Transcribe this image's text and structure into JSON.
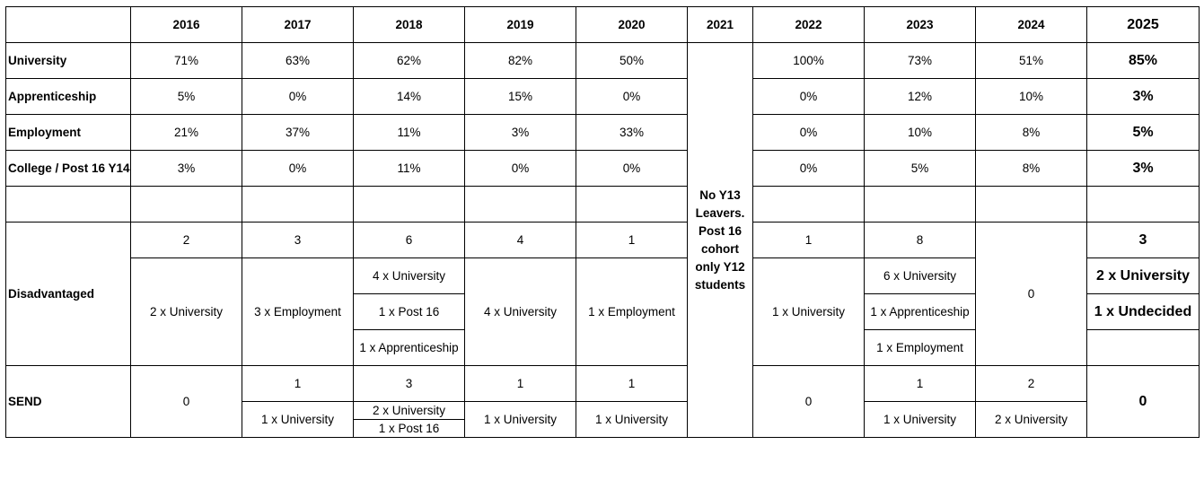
{
  "years": [
    "2016",
    "2017",
    "2018",
    "2019",
    "2020",
    "2021",
    "2022",
    "2023",
    "2024",
    "2025"
  ],
  "categories": {
    "university": "University",
    "apprenticeship": "Apprenticeship",
    "employment": "Employment",
    "college": "College / Post 16 Y14",
    "disadvantaged": "Disadvantaged",
    "send": "SEND"
  },
  "rates": {
    "university": [
      "71%",
      "63%",
      "62%",
      "82%",
      "50%",
      "100%",
      "73%",
      "51%",
      "85%"
    ],
    "apprenticeship": [
      "5%",
      "0%",
      "14%",
      "15%",
      "0%",
      "0%",
      "12%",
      "10%",
      "3%"
    ],
    "employment": [
      "21%",
      "37%",
      "11%",
      "3%",
      "33%",
      "0%",
      "10%",
      "8%",
      "5%"
    ],
    "college": [
      "3%",
      "0%",
      "11%",
      "0%",
      "0%",
      "0%",
      "5%",
      "8%",
      "3%"
    ]
  },
  "note_2021": "No Y13 Leavers. Post 16 cohort only Y12 students",
  "disadvantaged": {
    "y2016": {
      "count": "2",
      "d1": "2 x University"
    },
    "y2017": {
      "count": "3",
      "d1": "3 x Employment"
    },
    "y2018": {
      "count": "6",
      "d1": "4 x University",
      "d2": "1 x Post 16",
      "d3": "1 x Apprenticeship"
    },
    "y2019": {
      "count": "4",
      "d1": "4 x University"
    },
    "y2020": {
      "count": "1",
      "d1": "1 x Employment"
    },
    "y2022": {
      "count": "1",
      "d1": "1 x University"
    },
    "y2023": {
      "count": "8",
      "d1": "6 x University",
      "d2": "1 x Apprenticeship",
      "d3": "1 x Employment"
    },
    "y2024": {
      "count": "0"
    },
    "y2025": {
      "count": "3",
      "d1": "2 x University",
      "d2": "1 x Undecided"
    }
  },
  "send": {
    "y2016": {
      "count": "0"
    },
    "y2017": {
      "count": "1",
      "d1": "1 x University"
    },
    "y2018": {
      "count": "3",
      "d1": "2 x University",
      "d2": "1 x Post 16"
    },
    "y2019": {
      "count": "1",
      "d1": "1 x University"
    },
    "y2020": {
      "count": "1",
      "d1": "1 x University"
    },
    "y2022": {
      "count": "0"
    },
    "y2023": {
      "count": "1",
      "d1": "1 x University"
    },
    "y2024": {
      "count": "2",
      "d1": "2 x University"
    },
    "y2025": {
      "count": "0"
    }
  }
}
